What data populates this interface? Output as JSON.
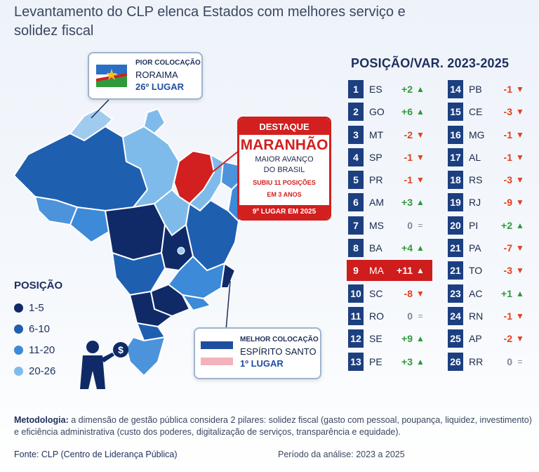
{
  "title": "Levantamento do CLP elenca Estados com melhores serviço e solidez fiscal",
  "worst": {
    "label": "PIOR COLOCAÇÃO",
    "state": "RORAIMA",
    "position": "26º LUGAR"
  },
  "best": {
    "label": "MELHOR COLOCAÇÃO",
    "state": "ESPÍRITO SANTO",
    "position": "1º LUGAR"
  },
  "highlight": {
    "header": "DESTAQUE",
    "state": "MARANHÃO",
    "sub1": "MAIOR AVANÇO",
    "sub2": "DO BRASIL",
    "note1": "SUBIU 11 POSIÇÕES",
    "note2": "EM 3 ANOS",
    "footer": "9º LUGAR EM 2025"
  },
  "legend": {
    "title": "POSIÇÃO",
    "items": [
      {
        "label": "1-5",
        "color": "#0f2a66"
      },
      {
        "label": "6-10",
        "color": "#1f5fb0"
      },
      {
        "label": "11-20",
        "color": "#3c8ad8"
      },
      {
        "label": "20-26",
        "color": "#7fbbea"
      }
    ]
  },
  "ranking": {
    "title": "POSIÇÃO/VAR. 2023-2025",
    "left": [
      {
        "pos": "1",
        "uf": "ES",
        "var": "+2",
        "dir": "up"
      },
      {
        "pos": "2",
        "uf": "GO",
        "var": "+6",
        "dir": "up"
      },
      {
        "pos": "3",
        "uf": "MT",
        "var": "-2",
        "dir": "down"
      },
      {
        "pos": "4",
        "uf": "SP",
        "var": "-1",
        "dir": "down"
      },
      {
        "pos": "5",
        "uf": "PR",
        "var": "-1",
        "dir": "down"
      },
      {
        "pos": "6",
        "uf": "AM",
        "var": "+3",
        "dir": "up"
      },
      {
        "pos": "7",
        "uf": "MS",
        "var": "0",
        "dir": "eq"
      },
      {
        "pos": "8",
        "uf": "BA",
        "var": "+4",
        "dir": "up"
      },
      {
        "pos": "9",
        "uf": "MA",
        "var": "+11",
        "dir": "up",
        "highlight": true
      },
      {
        "pos": "10",
        "uf": "SC",
        "var": "-8",
        "dir": "down"
      },
      {
        "pos": "11",
        "uf": "RO",
        "var": "0",
        "dir": "eq"
      },
      {
        "pos": "12",
        "uf": "SE",
        "var": "+9",
        "dir": "up"
      },
      {
        "pos": "13",
        "uf": "PE",
        "var": "+3",
        "dir": "up"
      }
    ],
    "right": [
      {
        "pos": "14",
        "uf": "PB",
        "var": "-1",
        "dir": "down"
      },
      {
        "pos": "15",
        "uf": "CE",
        "var": "-3",
        "dir": "down"
      },
      {
        "pos": "16",
        "uf": "MG",
        "var": "-1",
        "dir": "down"
      },
      {
        "pos": "17",
        "uf": "AL",
        "var": "-1",
        "dir": "down"
      },
      {
        "pos": "18",
        "uf": "RS",
        "var": "-3",
        "dir": "down"
      },
      {
        "pos": "19",
        "uf": "RJ",
        "var": "-9",
        "dir": "down"
      },
      {
        "pos": "20",
        "uf": "PI",
        "var": "+2",
        "dir": "up"
      },
      {
        "pos": "21",
        "uf": "PA",
        "var": "-7",
        "dir": "down"
      },
      {
        "pos": "21",
        "uf": "TO",
        "var": "-3",
        "dir": "down"
      },
      {
        "pos": "23",
        "uf": "AC",
        "var": "+1",
        "dir": "up"
      },
      {
        "pos": "24",
        "uf": "RN",
        "var": "-1",
        "dir": "down"
      },
      {
        "pos": "25",
        "uf": "AP",
        "var": "-2",
        "dir": "down"
      },
      {
        "pos": "26",
        "uf": "RR",
        "var": "0",
        "dir": "eq"
      }
    ]
  },
  "methodology_label": "Metodologia:",
  "methodology_text": "a dimensão de gestão pública considera 2 pilares: solidez fiscal (gasto com pessoal, poupança, liquidez, investimento) e eficiência administrativa (custo dos poderes, digitalização de serviços, transparência e equidade).",
  "source": "Fonte: CLP (Centro de Liderança Pública)",
  "period": "Período da análise:  2023 a 2025",
  "colors": {
    "dark": "#0f2a66",
    "mid": "#1f5fb0",
    "light": "#3c8ad8",
    "pale": "#7fbbea",
    "red": "#d21f1f"
  }
}
